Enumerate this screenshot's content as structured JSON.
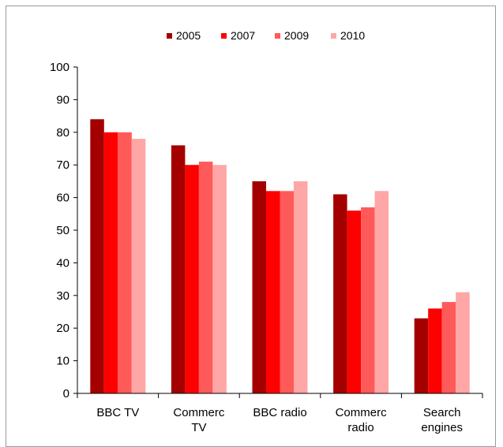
{
  "chart_data": {
    "type": "bar",
    "categories": [
      [
        "BBC TV"
      ],
      [
        "Commerc",
        "TV"
      ],
      [
        "BBC radio"
      ],
      [
        "Commerc",
        "radio"
      ],
      [
        "Search",
        "engines"
      ]
    ],
    "series": [
      {
        "name": "2005",
        "color": "#a50000",
        "values": [
          84,
          76,
          65,
          61,
          23
        ]
      },
      {
        "name": "2007",
        "color": "#ff0000",
        "values": [
          80,
          70,
          62,
          56,
          26
        ]
      },
      {
        "name": "2009",
        "color": "#ff5a5a",
        "values": [
          80,
          71,
          62,
          57,
          28
        ]
      },
      {
        "name": "2010",
        "color": "#ffa6a6",
        "values": [
          78,
          70,
          65,
          62,
          31
        ]
      }
    ],
    "ylim": [
      0,
      100
    ],
    "yticks": [
      0,
      10,
      20,
      30,
      40,
      50,
      60,
      70,
      80,
      90,
      100
    ],
    "legend_position": "top-center",
    "grid": false
  }
}
